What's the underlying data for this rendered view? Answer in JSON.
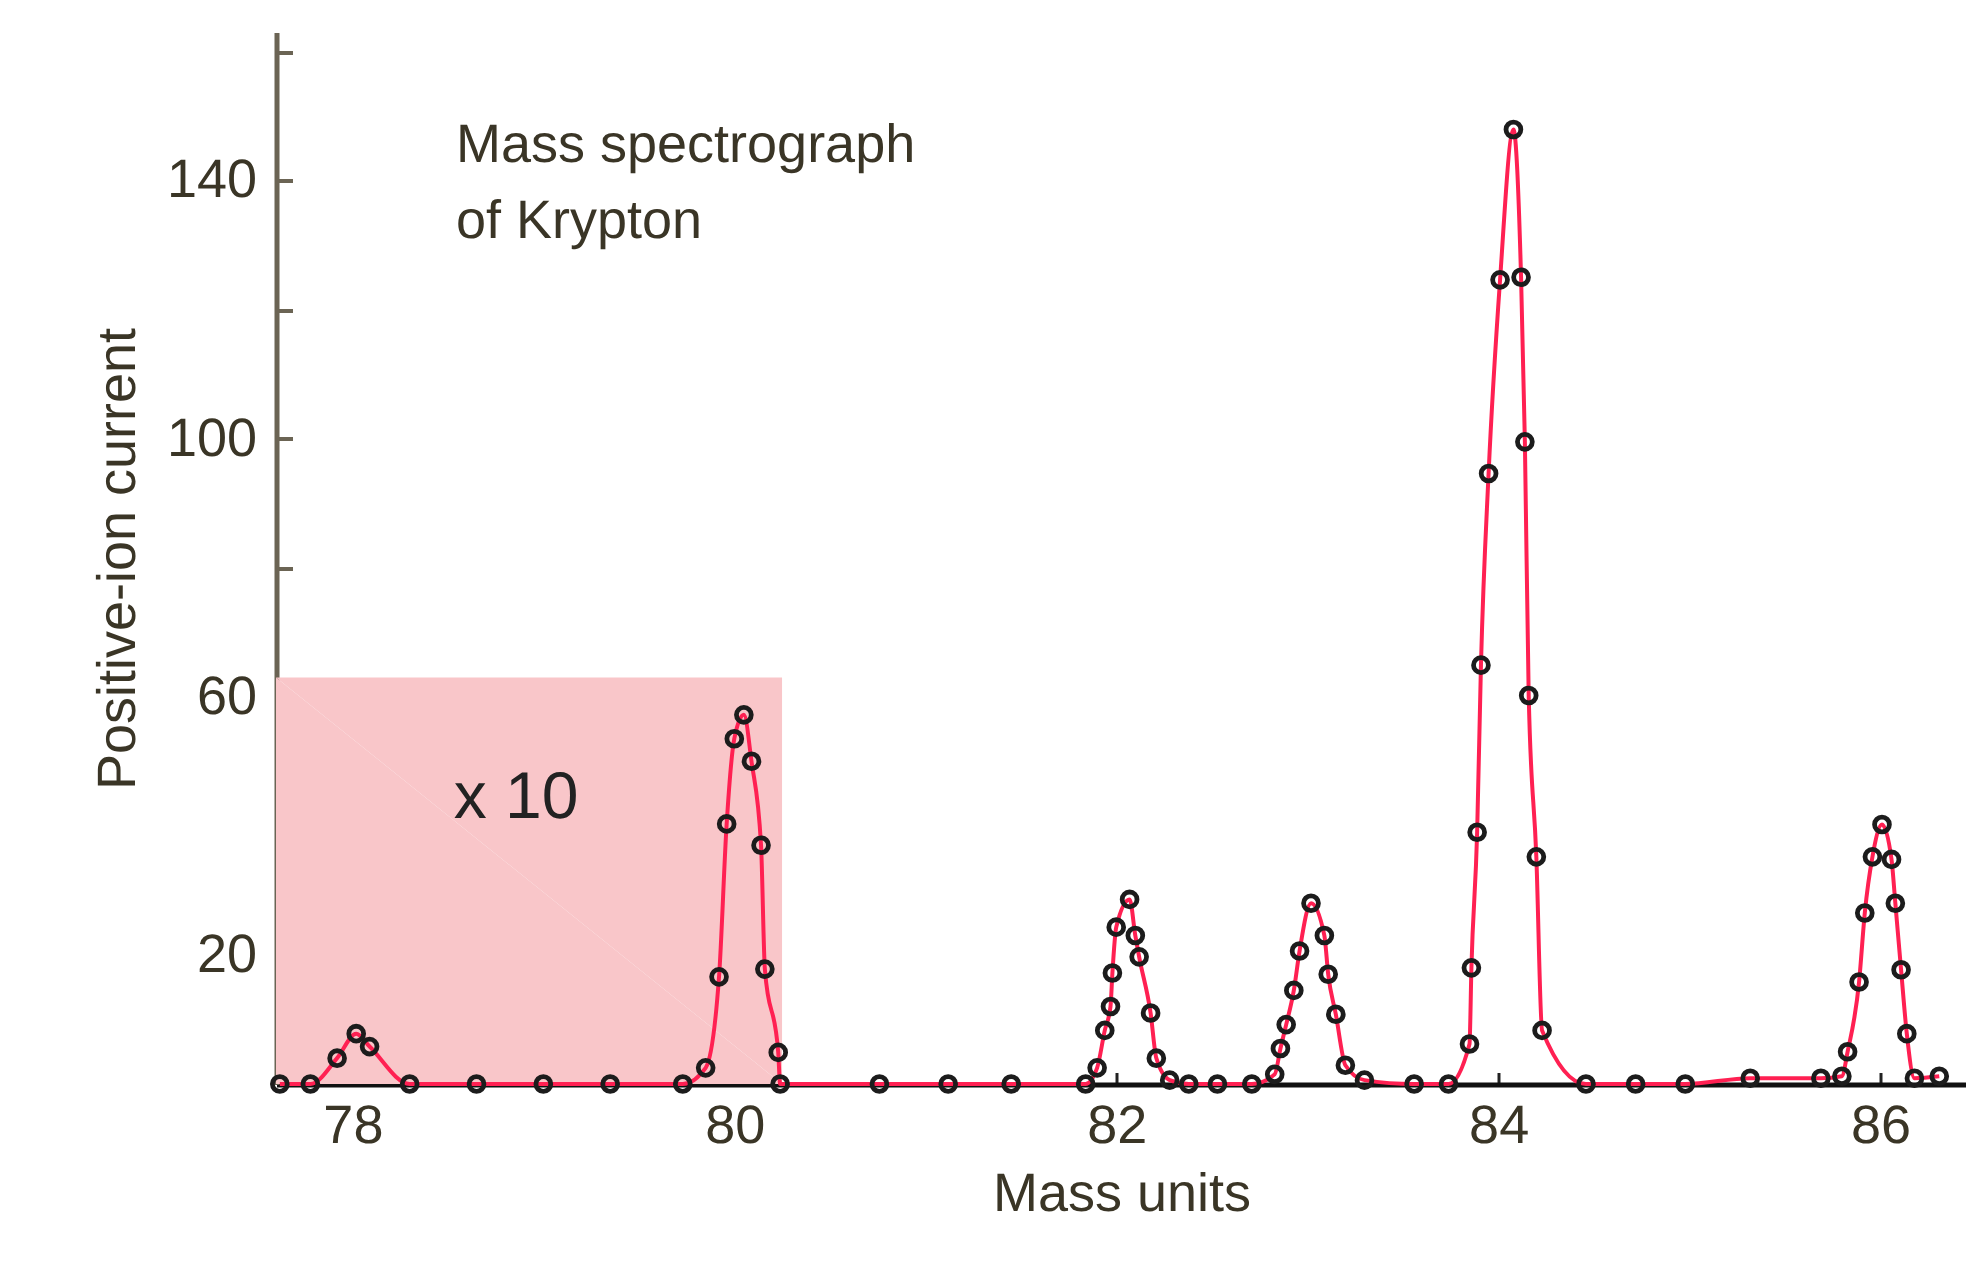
{
  "chart_data": {
    "type": "line",
    "title": "Mass spectrograph\nof Krypton",
    "xlabel": "Mass units",
    "ylabel": "Positive-ion current",
    "xlim": [
      77.6,
      86.45
    ],
    "ylim": [
      0,
      163
    ],
    "xticks": [
      78,
      80,
      82,
      84,
      86
    ],
    "yticks": [
      20,
      {
        "value": 40,
        "label": null
      },
      60,
      {
        "value": 80,
        "label": null
      },
      100,
      {
        "value": 120,
        "label": null
      },
      140,
      {
        "value": 160,
        "label": null
      }
    ],
    "annotations": [
      "x 10"
    ],
    "series": [
      {
        "type": "area",
        "color": "#f9c6c9",
        "x": [
          77.6,
          80.25
        ],
        "values": [
          63,
          63
        ]
      },
      {
        "color": "#ff2052",
        "marker": "circle",
        "x": [
          77.62,
          77.78,
          77.92,
          78.02,
          78.09,
          78.3,
          78.65,
          79.0,
          79.35,
          79.73,
          79.85,
          79.92,
          79.96,
          80.0,
          80.05,
          80.09,
          80.14,
          80.16,
          80.23,
          80.24,
          80.76,
          81.12,
          81.45,
          81.84,
          81.9,
          81.94,
          81.97,
          81.98,
          82.0,
          82.07,
          82.1,
          82.12,
          82.18,
          82.21,
          82.28,
          82.38,
          82.53,
          82.71,
          82.83,
          82.86,
          82.89,
          82.93,
          82.96,
          83.02,
          83.09,
          83.11,
          83.15,
          83.2,
          83.3,
          83.56,
          83.74,
          83.85,
          83.86,
          83.89,
          83.91,
          83.95,
          84.01,
          84.08,
          84.12,
          84.14,
          84.16,
          84.2,
          84.23,
          84.46,
          84.72,
          84.98,
          85.32,
          85.69,
          85.8,
          85.83,
          85.89,
          85.92,
          85.96,
          86.01,
          86.06,
          86.08,
          86.11,
          86.14,
          86.18,
          86.31
        ],
        "values": [
          0,
          0,
          4,
          7.8,
          5.8,
          0,
          0,
          0,
          0,
          0,
          2.5,
          16.6,
          40.3,
          53.5,
          57.2,
          50,
          37,
          17.8,
          4.9,
          0,
          0,
          0,
          0,
          0,
          2.5,
          8.3,
          12,
          17.2,
          24.3,
          28.6,
          23,
          19.7,
          11,
          4,
          0.6,
          0,
          0,
          0,
          1.5,
          5.5,
          9.2,
          14.5,
          20.6,
          28,
          23,
          17,
          10.8,
          2.9,
          0.6,
          0,
          0,
          6.2,
          18,
          39,
          64.9,
          94.6,
          124.6,
          147.9,
          125,
          99.5,
          60.2,
          35.2,
          8.3,
          0,
          0,
          0,
          0.9,
          0.9,
          1.2,
          5,
          15.8,
          26.5,
          35.2,
          40.2,
          34.8,
          28,
          17.7,
          7.8,
          0.9,
          1.2
        ]
      }
    ]
  }
}
